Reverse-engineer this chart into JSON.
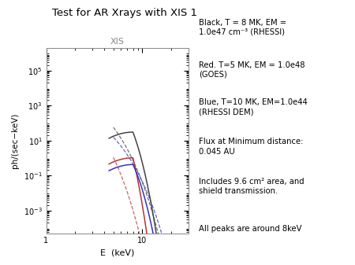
{
  "title": "Test for AR Xrays with XIS 1",
  "xlabel": "E  (keV)",
  "ylabel": "ph/(sec−keV)",
  "subplot_title": "XIS",
  "xlim_low": 1,
  "xlim_high": 30,
  "ylim_low": 5e-05,
  "ylim_high": 2000000.0,
  "annotation_lines": [
    "Black, T = 8 MK, EM =\n1.0e47 cm⁻³ (RHESSI)",
    "Red. T=5 MK, EM = 1.0e48\n(GOES)",
    "Blue, T=10 MK, EM=1.0e44\n(RHESSI DEM)",
    "Flux at Minimum distance:\n0.045 AU",
    "Includes 9.6 cm² area, and\nshield transmission.",
    "All peaks are around 8keV"
  ],
  "colors": {
    "black": "#444444",
    "red": "#bb3333",
    "blue": "#3333bb"
  },
  "background": "#ffffff",
  "T_black": 8,
  "T_red": 5,
  "T_blue": 10,
  "EM_black": 1e+47,
  "EM_red": 1e+48,
  "EM_blue": 1e+44,
  "peak_keV": 8.0,
  "E_start_solid": 4.5,
  "E_start_dashed": 5.0,
  "E_end": 27.0
}
